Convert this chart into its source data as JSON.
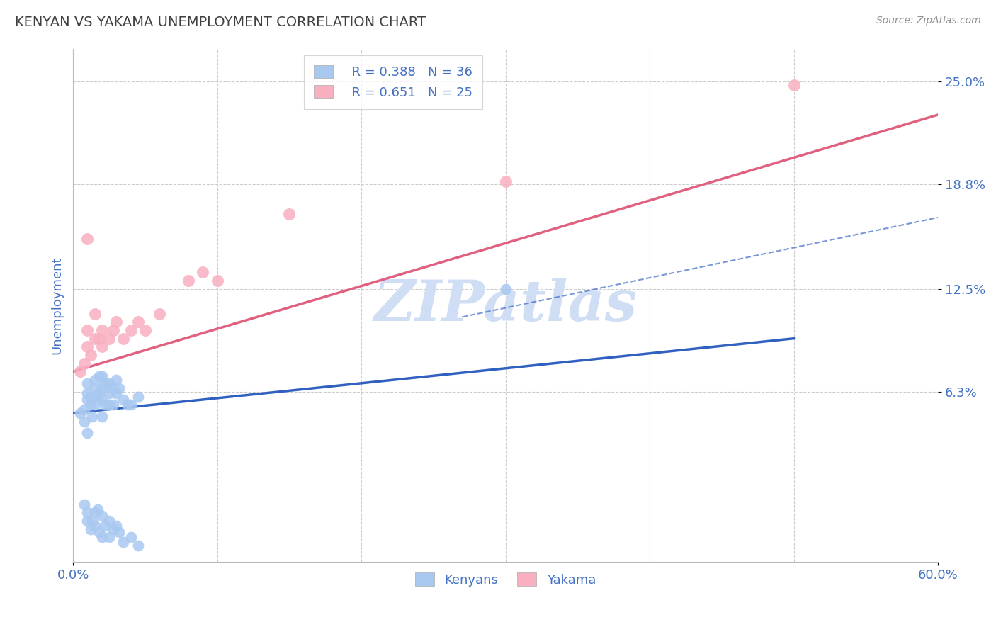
{
  "title": "KENYAN VS YAKAMA UNEMPLOYMENT CORRELATION CHART",
  "source": "Source: ZipAtlas.com",
  "ylabel": "Unemployment",
  "xlim": [
    0.0,
    0.6
  ],
  "ylim": [
    -0.04,
    0.27
  ],
  "yticks": [
    0.063,
    0.125,
    0.188,
    0.25
  ],
  "ytick_labels": [
    "6.3%",
    "12.5%",
    "18.8%",
    "25.0%"
  ],
  "legend_r1": "R = 0.388",
  "legend_n1": "N = 36",
  "legend_r2": "R = 0.651",
  "legend_n2": "N = 25",
  "kenyan_color": "#A8C8F0",
  "yakama_color": "#F8B0C0",
  "kenyan_line_color": "#3060C0",
  "yakama_line_color": "#E06080",
  "title_color": "#404040",
  "axis_label_color": "#4472C4",
  "source_color": "#909090",
  "watermark_color": "#D0DEF5",
  "background_color": "#FFFFFF",
  "grid_color": "#CCCCCC",
  "kenyan_x": [
    0.005,
    0.008,
    0.008,
    0.01,
    0.01,
    0.01,
    0.012,
    0.012,
    0.013,
    0.015,
    0.015,
    0.015,
    0.015,
    0.017,
    0.018,
    0.018,
    0.02,
    0.02,
    0.02,
    0.022,
    0.022,
    0.025,
    0.025,
    0.025,
    0.028,
    0.028,
    0.03,
    0.03,
    0.032,
    0.035,
    0.038,
    0.04,
    0.045,
    0.3,
    0.01,
    0.02
  ],
  "kenyan_y": [
    0.05,
    0.045,
    0.052,
    0.058,
    0.062,
    0.068,
    0.055,
    0.06,
    0.048,
    0.065,
    0.06,
    0.055,
    0.07,
    0.06,
    0.062,
    0.072,
    0.058,
    0.065,
    0.072,
    0.068,
    0.055,
    0.062,
    0.055,
    0.068,
    0.055,
    0.065,
    0.062,
    0.07,
    0.065,
    0.058,
    0.055,
    0.055,
    0.06,
    0.125,
    0.038,
    0.048
  ],
  "kenyan_x_low": [
    0.008,
    0.01,
    0.01,
    0.012,
    0.013,
    0.015,
    0.015,
    0.017,
    0.018,
    0.02,
    0.02,
    0.022,
    0.025,
    0.025,
    0.028,
    0.03,
    0.032,
    0.035,
    0.04,
    0.045
  ],
  "kenyan_y_low": [
    -0.005,
    -0.01,
    -0.015,
    -0.02,
    -0.015,
    -0.01,
    -0.018,
    -0.008,
    -0.022,
    -0.012,
    -0.025,
    -0.018,
    -0.015,
    -0.025,
    -0.02,
    -0.018,
    -0.022,
    -0.028,
    -0.025,
    -0.03
  ],
  "yakama_x": [
    0.005,
    0.008,
    0.01,
    0.01,
    0.012,
    0.015,
    0.015,
    0.018,
    0.02,
    0.02,
    0.025,
    0.028,
    0.03,
    0.035,
    0.04,
    0.045,
    0.05,
    0.06,
    0.08,
    0.09,
    0.1,
    0.15,
    0.3,
    0.5,
    0.01
  ],
  "yakama_y": [
    0.075,
    0.08,
    0.09,
    0.1,
    0.085,
    0.095,
    0.11,
    0.095,
    0.09,
    0.1,
    0.095,
    0.1,
    0.105,
    0.095,
    0.1,
    0.105,
    0.1,
    0.11,
    0.13,
    0.135,
    0.13,
    0.17,
    0.19,
    0.248,
    0.155
  ],
  "blue_line_x": [
    0.0,
    0.5
  ],
  "blue_line_y": [
    0.05,
    0.095
  ],
  "pink_line_x": [
    0.0,
    0.6
  ],
  "pink_line_y": [
    0.075,
    0.23
  ],
  "dashed_line_x": [
    0.27,
    0.6
  ],
  "dashed_line_y": [
    0.108,
    0.168
  ]
}
